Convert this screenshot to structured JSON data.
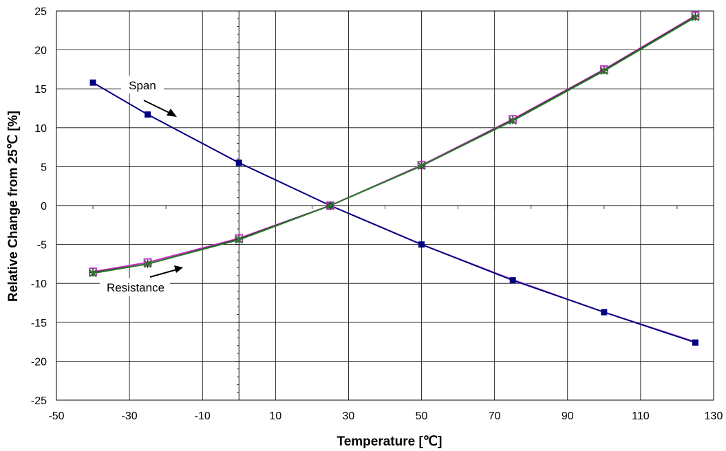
{
  "chart_data": {
    "type": "line",
    "title": "",
    "xlabel": "Temperature [℃]",
    "ylabel": "Relative Change from 25℃ [%]",
    "xlim": [
      -50,
      130
    ],
    "ylim": [
      -25,
      25
    ],
    "x_ticks": [
      -50,
      -30,
      -10,
      10,
      30,
      50,
      70,
      90,
      110,
      130
    ],
    "y_ticks": [
      25,
      20,
      15,
      10,
      5,
      0,
      -5,
      -10,
      -15,
      -20,
      -25
    ],
    "grid": true,
    "x": [
      -40,
      -25,
      0,
      25,
      50,
      75,
      100,
      125
    ],
    "series": [
      {
        "group": "span",
        "values": [
          15.8,
          11.7,
          5.5,
          0,
          -5.0,
          -9.5,
          -13.7,
          -17.5
        ],
        "color": "#cc66cc",
        "marker": "none"
      },
      {
        "group": "span",
        "values": [
          15.8,
          11.7,
          5.5,
          0,
          -5.0,
          -9.6,
          -13.7,
          -17.6
        ],
        "color": "#000080",
        "marker": "square"
      },
      {
        "group": "resistance",
        "values": [
          -8.5,
          -7.3,
          -4.2,
          0,
          5.2,
          11.1,
          17.5,
          24.4
        ],
        "color": "#cc33cc",
        "marker": "square-open"
      },
      {
        "group": "resistance",
        "values": [
          -8.6,
          -7.5,
          -4.3,
          0,
          5.1,
          11.0,
          17.4,
          24.3
        ],
        "color": "#333333",
        "marker": "cross"
      },
      {
        "group": "resistance",
        "values": [
          -8.7,
          -7.5,
          -4.4,
          0,
          5.1,
          10.9,
          17.3,
          24.2
        ],
        "color": "#2a7a2a",
        "marker": "x"
      }
    ],
    "annotations": [
      {
        "text": "Span",
        "id": "span"
      },
      {
        "text": "Resistance",
        "id": "resistance"
      }
    ]
  }
}
